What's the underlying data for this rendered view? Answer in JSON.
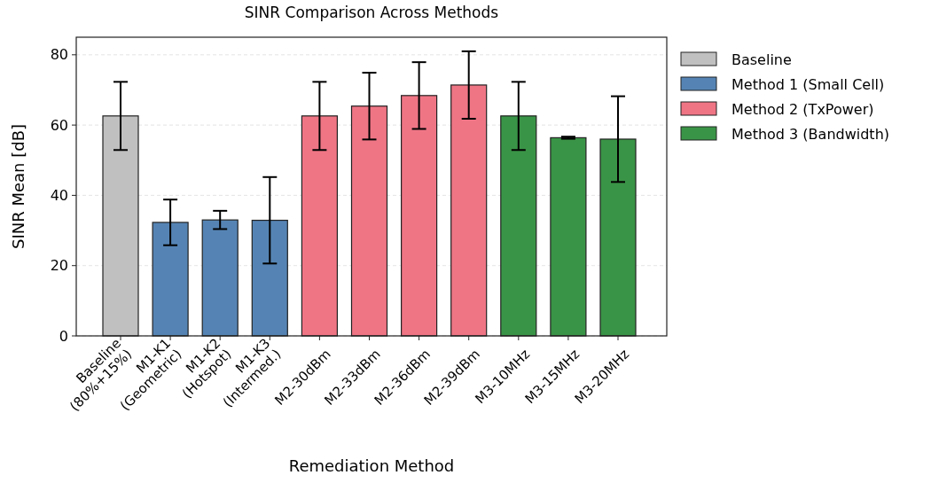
{
  "chart_data": {
    "type": "bar",
    "title": "SINR Comparison Across Methods",
    "xlabel": "Remediation Method",
    "ylabel": "SINR Mean [dB]",
    "categories": [
      "Baseline\n(80%+15%)",
      "M1-K1\n(Geometric)",
      "M1-K2\n(Hotspot)",
      "M1-K3\n(Intermed.)",
      "M2-30dBm",
      "M2-33dBm",
      "M2-36dBm",
      "M2-39dBm",
      "M3-10MHz",
      "M3-15MHz",
      "M3-20MHz"
    ],
    "series": [
      {
        "name": "Baseline",
        "color": "#c0c0c0",
        "values": [
          62.6,
          null,
          null,
          null,
          null,
          null,
          null,
          null,
          null,
          null,
          null
        ],
        "errors": [
          9.7,
          null,
          null,
          null,
          null,
          null,
          null,
          null,
          null,
          null,
          null
        ]
      },
      {
        "name": "Method 1 (Small Cell)",
        "color": "#5584b4",
        "values": [
          null,
          32.3,
          33.0,
          32.9,
          null,
          null,
          null,
          null,
          null,
          null,
          null
        ],
        "errors": [
          null,
          6.5,
          2.6,
          12.3,
          null,
          null,
          null,
          null,
          null,
          null,
          null
        ]
      },
      {
        "name": "Method 2 (TxPower)",
        "color": "#ef7585",
        "values": [
          null,
          null,
          null,
          null,
          62.6,
          65.4,
          68.4,
          71.4,
          null,
          null,
          null
        ],
        "errors": [
          null,
          null,
          null,
          null,
          9.7,
          9.5,
          9.5,
          9.6,
          null,
          null,
          null
        ]
      },
      {
        "name": "Method 3 (Bandwidth)",
        "color": "#3a9447",
        "values": [
          null,
          null,
          null,
          null,
          null,
          null,
          null,
          null,
          62.6,
          56.4,
          56.0
        ],
        "errors": [
          null,
          null,
          null,
          null,
          null,
          null,
          null,
          null,
          9.7,
          0.3,
          12.2
        ]
      }
    ],
    "ylim": [
      0,
      85
    ],
    "yticks": [
      0,
      20,
      40,
      60,
      80
    ],
    "grid": "y",
    "legend": "right"
  }
}
